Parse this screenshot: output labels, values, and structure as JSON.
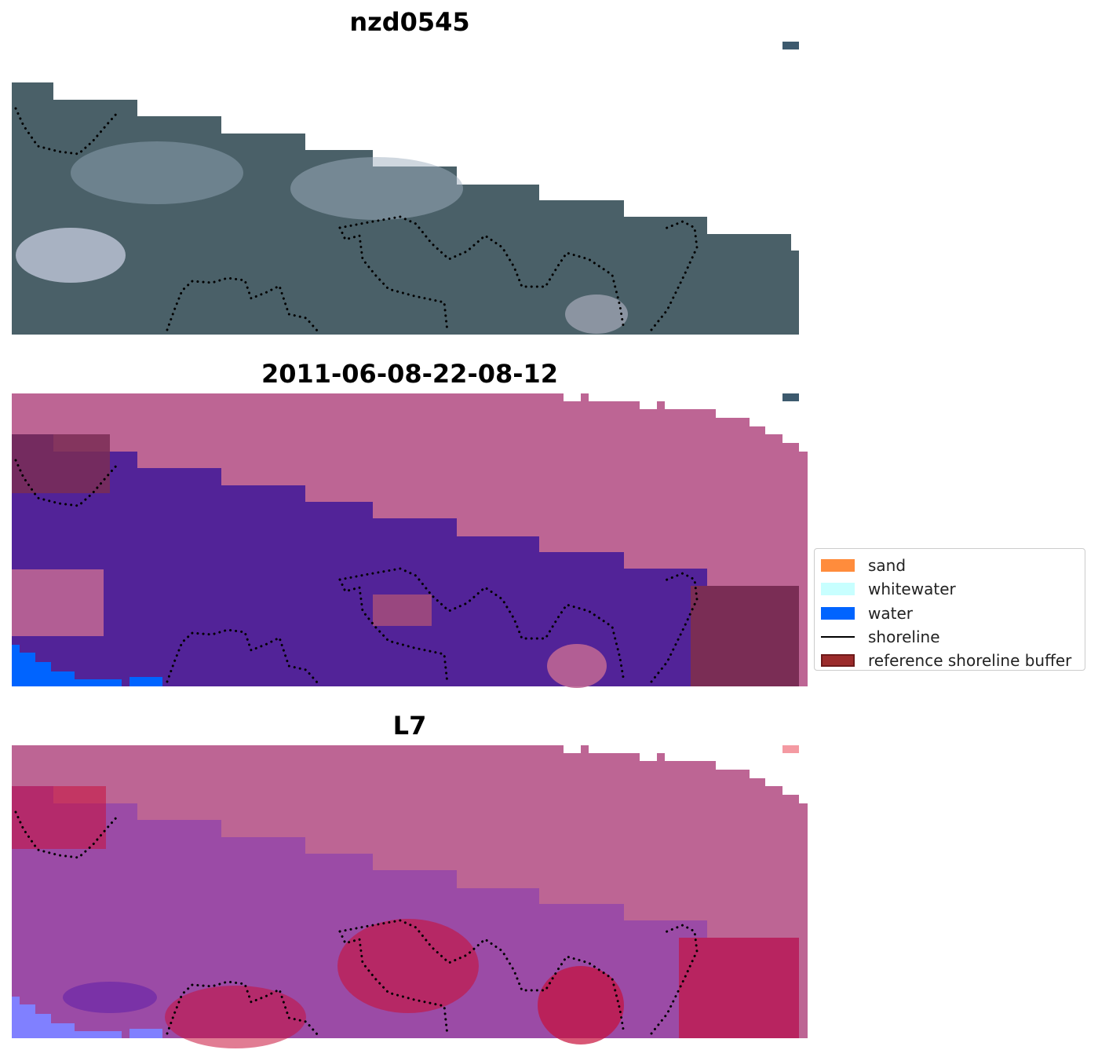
{
  "panels": [
    {
      "title": "nzd0545"
    },
    {
      "title": "2011-06-08-22-08-12"
    },
    {
      "title": "L7"
    }
  ],
  "legend": {
    "items": [
      {
        "label": "sand",
        "kind": "patch",
        "color": "#ff8c3c"
      },
      {
        "label": "whitewater",
        "kind": "patch",
        "color": "#c8ffff"
      },
      {
        "label": "water",
        "kind": "patch",
        "color": "#0064ff"
      },
      {
        "label": "shoreline",
        "kind": "line",
        "color": "#000000"
      },
      {
        "label": "reference shoreline buffer",
        "kind": "patch",
        "color": "#9b2b2b"
      }
    ]
  },
  "colors": {
    "rgb_base": "#4a6068",
    "no_data_pink": "#bd6594",
    "classified_purple": "#522398",
    "buffer_dark": "#7a2d55",
    "water_blue": "#0064ff",
    "index_red": "#c8103a",
    "index_violet": "#9b4ba6"
  }
}
